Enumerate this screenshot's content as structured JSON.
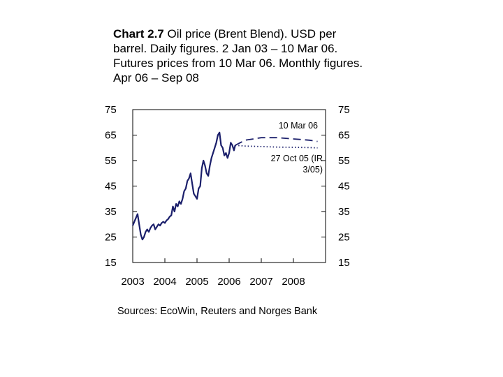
{
  "title": {
    "bold": "Chart 2.7",
    "rest": " Oil price (Brent Blend). USD per barrel. Daily figures. 2 Jan 03 – 10 Mar 06. Futures prices from 10 Mar 06. Monthly figures. Apr 06 – Sep 08"
  },
  "source": "Sources: EcoWin, Reuters and Norges Bank",
  "chart_data": {
    "type": "line",
    "title": "Chart 2.7 Oil price (Brent Blend). USD per barrel. Daily figures. 2 Jan 03 – 10 Mar 06. Futures prices from 10 Mar 06. Monthly figures. Apr 06 – Sep 08",
    "ylim": [
      15,
      75
    ],
    "xlim": [
      2003,
      2009
    ],
    "y_ticks": [
      75,
      65,
      55,
      45,
      35,
      25,
      15
    ],
    "x_ticks": [
      "2003",
      "2004",
      "2005",
      "2006",
      "2007",
      "2008"
    ],
    "grid": false,
    "annotations": [
      {
        "text": "10 Mar 06",
        "points_to": "futures-2006-03-10"
      },
      {
        "text": "27 Oct 05 (IR 3/05)",
        "points_to": "futures-2005-10-27"
      }
    ],
    "series": [
      {
        "style": "solid",
        "color": "#1b1f6b",
        "x": [
          2003.0,
          2003.05,
          2003.1,
          2003.15,
          2003.2,
          2003.25,
          2003.3,
          2003.35,
          2003.4,
          2003.45,
          2003.5,
          2003.55,
          2003.6,
          2003.65,
          2003.7,
          2003.75,
          2003.8,
          2003.85,
          2003.9,
          2003.95,
          2004.0,
          2004.05,
          2004.1,
          2004.15,
          2004.2,
          2004.25,
          2004.3,
          2004.35,
          2004.4,
          2004.45,
          2004.5,
          2004.55,
          2004.6,
          2004.65,
          2004.7,
          2004.75,
          2004.8,
          2004.85,
          2004.9,
          2004.95,
          2005.0,
          2005.05,
          2005.1,
          2005.15,
          2005.2,
          2005.25,
          2005.3,
          2005.35,
          2005.4,
          2005.45,
          2005.5,
          2005.55,
          2005.6,
          2005.65,
          2005.7,
          2005.75,
          2005.8,
          2005.85,
          2005.9,
          2005.95,
          2006.0,
          2006.05,
          2006.1,
          2006.15,
          2006.19
        ],
        "values": [
          29.5,
          31,
          32.5,
          34,
          30,
          26,
          24,
          25,
          27,
          28,
          27,
          28.5,
          29.5,
          30,
          28,
          29,
          30,
          29.5,
          30.5,
          31,
          30.5,
          31.5,
          32,
          33,
          33.5,
          37,
          35,
          38,
          37,
          39,
          38,
          40,
          43,
          44,
          47,
          48,
          50,
          46,
          42,
          41,
          40,
          44,
          45,
          52,
          55,
          53,
          50,
          49,
          53,
          56,
          58,
          60,
          62,
          65,
          66,
          61,
          60,
          57,
          58,
          56,
          58,
          62,
          61,
          59,
          61
        ]
      },
      {
        "name": "10 Mar 06",
        "style": "dash",
        "color": "#1b1f6b",
        "x": [
          2006.19,
          2006.5,
          2007.0,
          2007.5,
          2008.0,
          2008.5,
          2008.75
        ],
        "values": [
          61,
          63,
          64,
          64,
          63.5,
          63,
          62.5
        ]
      },
      {
        "name": "27 Oct 05 (IR 3/05)",
        "style": "dot",
        "color": "#1b1f6b",
        "x": [
          2006.19,
          2006.5,
          2007.0,
          2007.5,
          2008.0,
          2008.5,
          2008.75
        ],
        "values": [
          61,
          60.7,
          60.5,
          60.3,
          60.2,
          60.1,
          60
        ]
      }
    ]
  }
}
